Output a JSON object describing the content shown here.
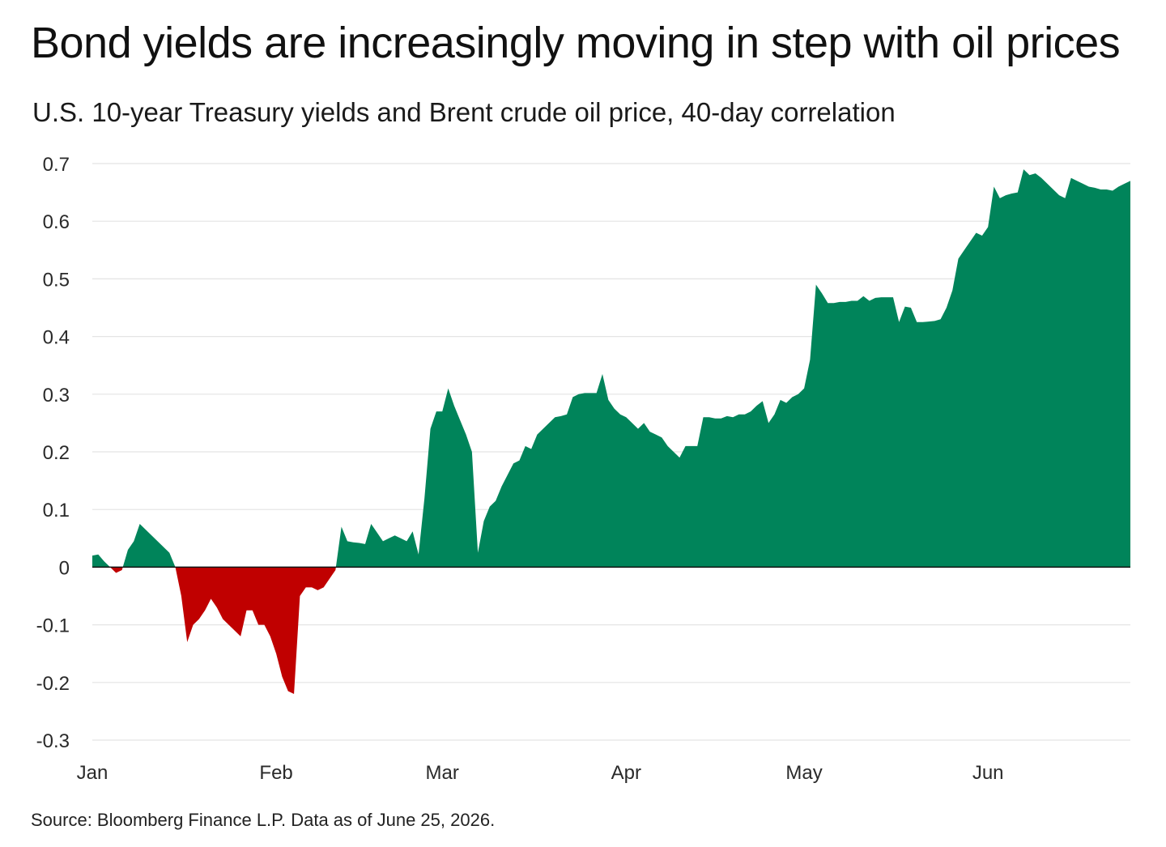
{
  "title": "Bond yields are increasingly moving in step with oil prices",
  "subtitle": "U.S. 10-year Treasury yields and Brent crude oil price, 40-day correlation",
  "source": "Source: Bloomberg Finance L.P. Data as of June 25, 2026.",
  "colors": {
    "positive": "#00845a",
    "negative": "#c00000",
    "gridline": "#e4e4e4",
    "zero_line": "#111111"
  },
  "chart_data": {
    "type": "area",
    "title": "U.S. 10-year Treasury yields and Brent crude oil price, 40-day correlation",
    "xlabel": "",
    "ylabel": "",
    "ylim": [
      -0.3,
      0.7
    ],
    "yticks": [
      0.7,
      0.6,
      0.5,
      0.4,
      0.3,
      0.2,
      0.1,
      0,
      -0.1,
      -0.2,
      -0.3
    ],
    "ytick_labels": [
      "0.7",
      "0.6",
      "0.5",
      "0.4",
      "0.3",
      "0.2",
      "0.1",
      "0",
      "-0.1",
      "-0.2",
      "-0.3"
    ],
    "xlim": [
      "2026-01-01",
      "2026-06-25"
    ],
    "xticks": [
      {
        "date": "2026-01-01",
        "label": "Jan"
      },
      {
        "date": "2026-02-01",
        "label": "Feb"
      },
      {
        "date": "2026-03-01",
        "label": "Mar"
      },
      {
        "date": "2026-04-01",
        "label": "Apr"
      },
      {
        "date": "2026-05-01",
        "label": "May"
      },
      {
        "date": "2026-06-01",
        "label": "Jun"
      }
    ],
    "grid": true,
    "legend": "none",
    "fill_rule": "green above zero, red below zero",
    "series": [
      {
        "points": [
          [
            "2026-01-01",
            0.02
          ],
          [
            "2026-01-02",
            0.022
          ],
          [
            "2026-01-03",
            0.01
          ],
          [
            "2026-01-04",
            0.0
          ],
          [
            "2026-01-05",
            -0.01
          ],
          [
            "2026-01-06",
            -0.005
          ],
          [
            "2026-01-07",
            0.03
          ],
          [
            "2026-01-08",
            0.045
          ],
          [
            "2026-01-09",
            0.075
          ],
          [
            "2026-01-10",
            0.065
          ],
          [
            "2026-01-11",
            0.055
          ],
          [
            "2026-01-12",
            0.045
          ],
          [
            "2026-01-13",
            0.035
          ],
          [
            "2026-01-14",
            0.025
          ],
          [
            "2026-01-15",
            0.0
          ],
          [
            "2026-01-16",
            -0.05
          ],
          [
            "2026-01-17",
            -0.13
          ],
          [
            "2026-01-18",
            -0.1
          ],
          [
            "2026-01-19",
            -0.09
          ],
          [
            "2026-01-20",
            -0.075
          ],
          [
            "2026-01-21",
            -0.055
          ],
          [
            "2026-01-22",
            -0.07
          ],
          [
            "2026-01-23",
            -0.09
          ],
          [
            "2026-01-24",
            -0.1
          ],
          [
            "2026-01-25",
            -0.11
          ],
          [
            "2026-01-26",
            -0.12
          ],
          [
            "2026-01-27",
            -0.075
          ],
          [
            "2026-01-28",
            -0.075
          ],
          [
            "2026-01-29",
            -0.1
          ],
          [
            "2026-01-30",
            -0.1
          ],
          [
            "2026-01-31",
            -0.12
          ],
          [
            "2026-02-01",
            -0.15
          ],
          [
            "2026-02-02",
            -0.19
          ],
          [
            "2026-02-03",
            -0.215
          ],
          [
            "2026-02-04",
            -0.22
          ],
          [
            "2026-02-05",
            -0.05
          ],
          [
            "2026-02-06",
            -0.035
          ],
          [
            "2026-02-07",
            -0.035
          ],
          [
            "2026-02-08",
            -0.04
          ],
          [
            "2026-02-09",
            -0.035
          ],
          [
            "2026-02-10",
            -0.02
          ],
          [
            "2026-02-11",
            -0.005
          ],
          [
            "2026-02-12",
            0.07
          ],
          [
            "2026-02-13",
            0.045
          ],
          [
            "2026-02-14",
            0.043
          ],
          [
            "2026-02-15",
            0.042
          ],
          [
            "2026-02-16",
            0.04
          ],
          [
            "2026-02-17",
            0.075
          ],
          [
            "2026-02-18",
            0.06
          ],
          [
            "2026-02-19",
            0.045
          ],
          [
            "2026-02-20",
            0.05
          ],
          [
            "2026-02-21",
            0.055
          ],
          [
            "2026-02-22",
            0.05
          ],
          [
            "2026-02-23",
            0.045
          ],
          [
            "2026-02-24",
            0.062
          ],
          [
            "2026-02-25",
            0.022
          ],
          [
            "2026-02-26",
            0.12
          ],
          [
            "2026-02-27",
            0.24
          ],
          [
            "2026-02-28",
            0.27
          ],
          [
            "2026-03-01",
            0.27
          ],
          [
            "2026-03-02",
            0.31
          ],
          [
            "2026-03-03",
            0.28
          ],
          [
            "2026-03-04",
            0.255
          ],
          [
            "2026-03-05",
            0.23
          ],
          [
            "2026-03-06",
            0.2
          ],
          [
            "2026-03-07",
            0.025
          ],
          [
            "2026-03-08",
            0.08
          ],
          [
            "2026-03-09",
            0.105
          ],
          [
            "2026-03-10",
            0.115
          ],
          [
            "2026-03-11",
            0.14
          ],
          [
            "2026-03-12",
            0.16
          ],
          [
            "2026-03-13",
            0.18
          ],
          [
            "2026-03-14",
            0.185
          ],
          [
            "2026-03-15",
            0.21
          ],
          [
            "2026-03-16",
            0.205
          ],
          [
            "2026-03-17",
            0.23
          ],
          [
            "2026-03-18",
            0.24
          ],
          [
            "2026-03-19",
            0.25
          ],
          [
            "2026-03-20",
            0.26
          ],
          [
            "2026-03-21",
            0.262
          ],
          [
            "2026-03-22",
            0.265
          ],
          [
            "2026-03-23",
            0.295
          ],
          [
            "2026-03-24",
            0.3
          ],
          [
            "2026-03-25",
            0.302
          ],
          [
            "2026-03-26",
            0.302
          ],
          [
            "2026-03-27",
            0.302
          ],
          [
            "2026-03-28",
            0.335
          ],
          [
            "2026-03-29",
            0.29
          ],
          [
            "2026-03-30",
            0.275
          ],
          [
            "2026-03-31",
            0.265
          ],
          [
            "2026-04-01",
            0.26
          ],
          [
            "2026-04-02",
            0.25
          ],
          [
            "2026-04-03",
            0.24
          ],
          [
            "2026-04-04",
            0.25
          ],
          [
            "2026-04-05",
            0.235
          ],
          [
            "2026-04-06",
            0.23
          ],
          [
            "2026-04-07",
            0.225
          ],
          [
            "2026-04-08",
            0.21
          ],
          [
            "2026-04-09",
            0.2
          ],
          [
            "2026-04-10",
            0.19
          ],
          [
            "2026-04-11",
            0.21
          ],
          [
            "2026-04-12",
            0.21
          ],
          [
            "2026-04-13",
            0.21
          ],
          [
            "2026-04-14",
            0.26
          ],
          [
            "2026-04-15",
            0.26
          ],
          [
            "2026-04-16",
            0.258
          ],
          [
            "2026-04-17",
            0.258
          ],
          [
            "2026-04-18",
            0.262
          ],
          [
            "2026-04-19",
            0.26
          ],
          [
            "2026-04-20",
            0.265
          ],
          [
            "2026-04-21",
            0.265
          ],
          [
            "2026-04-22",
            0.27
          ],
          [
            "2026-04-23",
            0.28
          ],
          [
            "2026-04-24",
            0.288
          ],
          [
            "2026-04-25",
            0.25
          ],
          [
            "2026-04-26",
            0.265
          ],
          [
            "2026-04-27",
            0.29
          ],
          [
            "2026-04-28",
            0.285
          ],
          [
            "2026-04-29",
            0.295
          ],
          [
            "2026-04-30",
            0.3
          ],
          [
            "2026-05-01",
            0.31
          ],
          [
            "2026-05-02",
            0.36
          ],
          [
            "2026-05-03",
            0.49
          ],
          [
            "2026-05-04",
            0.475
          ],
          [
            "2026-05-05",
            0.458
          ],
          [
            "2026-05-06",
            0.458
          ],
          [
            "2026-05-07",
            0.46
          ],
          [
            "2026-05-08",
            0.46
          ],
          [
            "2026-05-09",
            0.462
          ],
          [
            "2026-05-10",
            0.462
          ],
          [
            "2026-05-11",
            0.47
          ],
          [
            "2026-05-12",
            0.462
          ],
          [
            "2026-05-13",
            0.467
          ],
          [
            "2026-05-14",
            0.468
          ],
          [
            "2026-05-15",
            0.468
          ],
          [
            "2026-05-16",
            0.468
          ],
          [
            "2026-05-17",
            0.425
          ],
          [
            "2026-05-18",
            0.452
          ],
          [
            "2026-05-19",
            0.45
          ],
          [
            "2026-05-20",
            0.425
          ],
          [
            "2026-05-21",
            0.425
          ],
          [
            "2026-05-22",
            0.426
          ],
          [
            "2026-05-23",
            0.427
          ],
          [
            "2026-05-24",
            0.43
          ],
          [
            "2026-05-25",
            0.45
          ],
          [
            "2026-05-26",
            0.48
          ],
          [
            "2026-05-27",
            0.535
          ],
          [
            "2026-05-28",
            0.55
          ],
          [
            "2026-05-29",
            0.565
          ],
          [
            "2026-05-30",
            0.58
          ],
          [
            "2026-05-31",
            0.575
          ],
          [
            "2026-06-01",
            0.59
          ],
          [
            "2026-06-02",
            0.66
          ],
          [
            "2026-06-03",
            0.64
          ],
          [
            "2026-06-04",
            0.645
          ],
          [
            "2026-06-05",
            0.648
          ],
          [
            "2026-06-06",
            0.65
          ],
          [
            "2026-06-07",
            0.69
          ],
          [
            "2026-06-08",
            0.68
          ],
          [
            "2026-06-09",
            0.683
          ],
          [
            "2026-06-10",
            0.675
          ],
          [
            "2026-06-11",
            0.665
          ],
          [
            "2026-06-12",
            0.655
          ],
          [
            "2026-06-13",
            0.645
          ],
          [
            "2026-06-14",
            0.64
          ],
          [
            "2026-06-15",
            0.675
          ],
          [
            "2026-06-16",
            0.67
          ],
          [
            "2026-06-17",
            0.665
          ],
          [
            "2026-06-18",
            0.66
          ],
          [
            "2026-06-19",
            0.658
          ],
          [
            "2026-06-20",
            0.655
          ],
          [
            "2026-06-21",
            0.655
          ],
          [
            "2026-06-22",
            0.653
          ],
          [
            "2026-06-23",
            0.66
          ],
          [
            "2026-06-24",
            0.665
          ],
          [
            "2026-06-25",
            0.67
          ]
        ]
      }
    ]
  }
}
